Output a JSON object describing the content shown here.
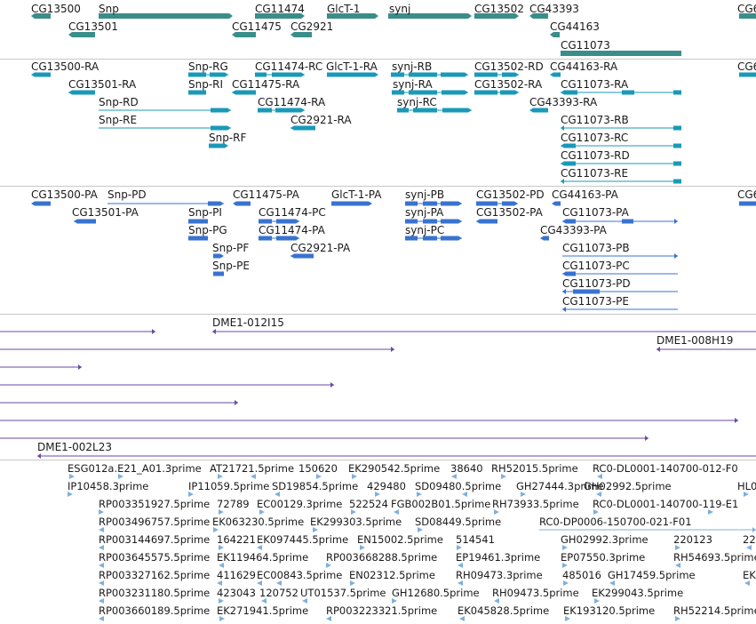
{
  "colors": {
    "gene": "#3a8e8a",
    "mrna": "#1a99b8",
    "protein": "#3873d0",
    "bac": "#6a4aa6",
    "est": "#7fb0dc"
  },
  "tracks": [
    {
      "name": "gene",
      "features": [
        {
          "label": "CG13500"
        },
        {
          "label": "Snp"
        },
        {
          "label": "CG11474"
        },
        {
          "label": "GlcT-1"
        },
        {
          "label": "synj"
        },
        {
          "label": "CG13502"
        },
        {
          "label": "CG43393"
        },
        {
          "label": "CG6"
        },
        {
          "label": "CG13501"
        },
        {
          "label": "CG11475"
        },
        {
          "label": "CG2921"
        },
        {
          "label": "CG44163"
        },
        {
          "label": "CG11073"
        }
      ]
    },
    {
      "name": "mrna",
      "features": [
        {
          "label": "CG13500-RA"
        },
        {
          "label": "Snp-RG"
        },
        {
          "label": "CG11474-RC"
        },
        {
          "label": "GlcT-1-RA"
        },
        {
          "label": "synj-RB"
        },
        {
          "label": "CG13502-RD"
        },
        {
          "label": "CG44163-RA"
        },
        {
          "label": "CG6"
        },
        {
          "label": "CG13501-RA"
        },
        {
          "label": "Snp-RI"
        },
        {
          "label": "CG11475-RA"
        },
        {
          "label": "synj-RA"
        },
        {
          "label": "CG13502-RA"
        },
        {
          "label": "CG11073-RA"
        },
        {
          "label": "Snp-RD"
        },
        {
          "label": "CG11474-RA"
        },
        {
          "label": "synj-RC"
        },
        {
          "label": "CG43393-RA"
        },
        {
          "label": "Snp-RE"
        },
        {
          "label": "CG2921-RA"
        },
        {
          "label": "CG11073-RB"
        },
        {
          "label": "Snp-RF"
        },
        {
          "label": "CG11073-RC"
        },
        {
          "label": "CG11073-RD"
        },
        {
          "label": "CG11073-RE"
        }
      ]
    },
    {
      "name": "protein",
      "features": [
        {
          "label": "CG13500-PA"
        },
        {
          "label": "Snp-PD"
        },
        {
          "label": "CG11475-PA"
        },
        {
          "label": "GlcT-1-PA"
        },
        {
          "label": "synj-PB"
        },
        {
          "label": "CG13502-PD"
        },
        {
          "label": "CG44163-PA"
        },
        {
          "label": "CG6"
        },
        {
          "label": "CG13501-PA"
        },
        {
          "label": "Snp-PI"
        },
        {
          "label": "CG11474-PC"
        },
        {
          "label": "synj-PA"
        },
        {
          "label": "CG13502-PA"
        },
        {
          "label": "CG11073-PA"
        },
        {
          "label": "Snp-PG"
        },
        {
          "label": "CG11474-PA"
        },
        {
          "label": "synj-PC"
        },
        {
          "label": "CG43393-PA"
        },
        {
          "label": "Snp-PF"
        },
        {
          "label": "CG2921-PA"
        },
        {
          "label": "CG11073-PB"
        },
        {
          "label": "Snp-PE"
        },
        {
          "label": "CG11073-PC"
        },
        {
          "label": "CG11073-PD"
        },
        {
          "label": "CG11073-PE"
        }
      ]
    },
    {
      "name": "bac",
      "features": [
        {
          "label": "DME1-012I15"
        },
        {
          "label": "DME1-008H19"
        },
        {
          "label": "DME1-002L23"
        }
      ]
    },
    {
      "name": "est",
      "features": [
        {
          "label": "ESG012a.E21_A01.3prime"
        },
        {
          "label": "AT21721.5prime"
        },
        {
          "label": "150620"
        },
        {
          "label": "EK290542.5prime"
        },
        {
          "label": "38640"
        },
        {
          "label": "RH52015.5prime"
        },
        {
          "label": "RC0-DL0001-140700-012-F0"
        },
        {
          "label": "IP10458.3prime"
        },
        {
          "label": "IP11059.5prime"
        },
        {
          "label": "SD19854.5prime"
        },
        {
          "label": "429480"
        },
        {
          "label": "SD09480.5prime"
        },
        {
          "label": "GH27444.3prime"
        },
        {
          "label": "GH02992.5prime"
        },
        {
          "label": "HL0"
        },
        {
          "label": "RP003351927.5prime"
        },
        {
          "label": "72789"
        },
        {
          "label": "EC00129.3prime"
        },
        {
          "label": "522524"
        },
        {
          "label": "FGB002B01.5prime"
        },
        {
          "label": "RH73933.5prime"
        },
        {
          "label": "RC0-DL0001-140700-119-E1"
        },
        {
          "label": "RP003496757.5prime"
        },
        {
          "label": "EK063230.5prime"
        },
        {
          "label": "EK299303.5prime"
        },
        {
          "label": "SD08449.5prime"
        },
        {
          "label": "RC0-DP0006-150700-021-F01"
        },
        {
          "label": "RP003144697.5prime"
        },
        {
          "label": "164221"
        },
        {
          "label": "EK097445.5prime"
        },
        {
          "label": "EN15002.5prime"
        },
        {
          "label": "514541"
        },
        {
          "label": "GH02992.3prime"
        },
        {
          "label": "220123"
        },
        {
          "label": "22"
        },
        {
          "label": "RP003645575.5prime"
        },
        {
          "label": "EK119464.5prime"
        },
        {
          "label": "RP003668288.5prime"
        },
        {
          "label": "EP19461.3prime"
        },
        {
          "label": "EP07550.3prime"
        },
        {
          "label": "RH54693.5prime"
        },
        {
          "label": "RP003327162.5prime"
        },
        {
          "label": "411629"
        },
        {
          "label": "EC00843.5prime"
        },
        {
          "label": "EN02312.5prime"
        },
        {
          "label": "RH09473.3prime"
        },
        {
          "label": "485016"
        },
        {
          "label": "GH17459.5prime"
        },
        {
          "label": "EK"
        },
        {
          "label": "RP003231180.5prime"
        },
        {
          "label": "423043"
        },
        {
          "label": "120752"
        },
        {
          "label": "UT01537.5prime"
        },
        {
          "label": "GH12680.5prime"
        },
        {
          "label": "RH09473.5prime"
        },
        {
          "label": "EK299043.5prime"
        },
        {
          "label": "RP003660189.5prime"
        },
        {
          "label": "EK271941.5prime"
        },
        {
          "label": "RP003223321.5prime"
        },
        {
          "label": "EK045828.5prime"
        },
        {
          "label": "EK193120.5prime"
        },
        {
          "label": "RH52214.5prime"
        }
      ]
    }
  ]
}
